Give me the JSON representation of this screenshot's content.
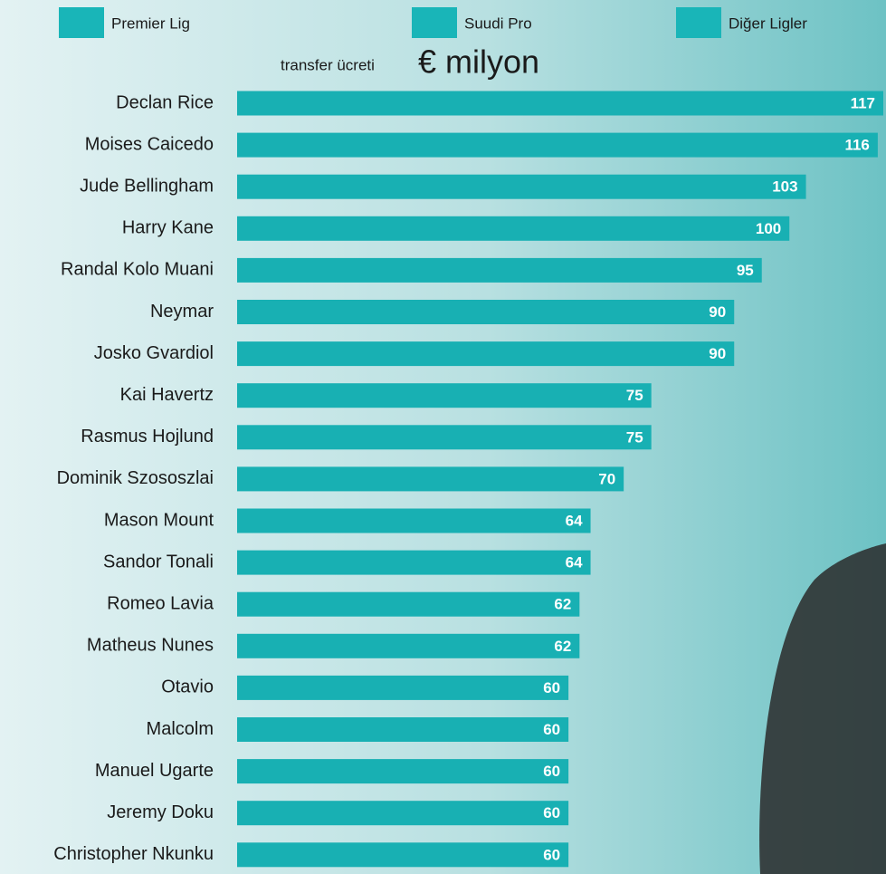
{
  "chart_data": {
    "type": "bar",
    "orientation": "horizontal",
    "title": "transfer ücreti",
    "title_unit": "€ milyon",
    "legend": [
      {
        "name": "Premier Lig",
        "color": "#19b5b8"
      },
      {
        "name": "Suudi Pro",
        "color": "#19b5b8"
      },
      {
        "name": "Diğer Ligler",
        "color": "#19b5b8"
      }
    ],
    "categories": [
      "Declan Rice",
      "Moises Caicedo",
      "Jude Bellingham",
      "Harry Kane",
      "Randal Kolo Muani",
      "Neymar",
      "Josko Gvardiol",
      "Kai Havertz",
      "Rasmus Hojlund",
      "Dominik Szososzlai",
      "Mason Mount",
      "Sandor Tonali",
      "Romeo Lavia",
      "Matheus Nunes",
      "Otavio",
      "Malcolm",
      "Manuel Ugarte",
      "Jeremy Doku",
      "Christopher Nkunku"
    ],
    "values": [
      117,
      116,
      103,
      100,
      95,
      90,
      90,
      75,
      75,
      70,
      64,
      64,
      62,
      62,
      60,
      60,
      60,
      60,
      60
    ],
    "color": "#18b0b3"
  }
}
